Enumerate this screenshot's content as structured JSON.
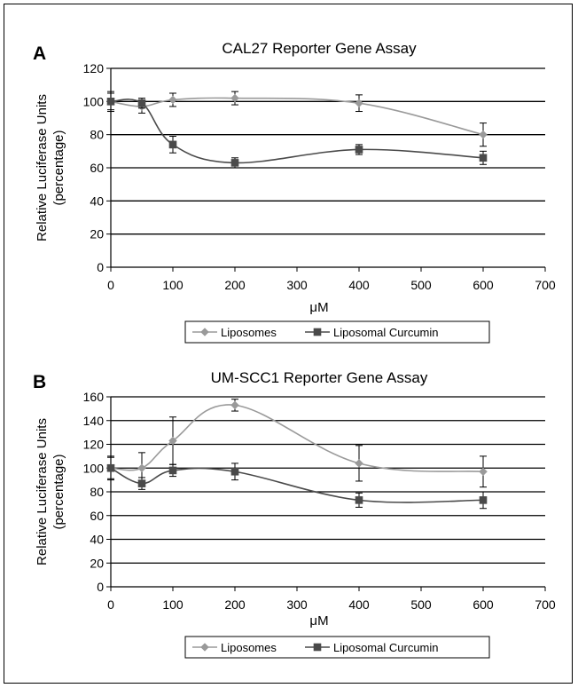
{
  "chart_data": [
    {
      "panel": "A",
      "type": "line",
      "title": "CAL27 Reporter Gene Assay",
      "xlabel": "μM",
      "ylabel": [
        "Relative Luciferase Units",
        "(percentage)"
      ],
      "xlim": [
        0,
        700
      ],
      "ylim": [
        0,
        120
      ],
      "xticks": [
        0,
        100,
        200,
        300,
        400,
        500,
        600,
        700
      ],
      "yticks": [
        0,
        20,
        40,
        60,
        80,
        100,
        120
      ],
      "grid": "horizontal",
      "legend": "bottom",
      "series": [
        {
          "name": "Liposomes",
          "color": "#9a9a9a",
          "marker": "diamond",
          "x": [
            0,
            50,
            100,
            200,
            400,
            600
          ],
          "y": [
            100,
            97,
            101,
            102,
            99,
            80
          ],
          "err": [
            5,
            4,
            4,
            4,
            5,
            7
          ]
        },
        {
          "name": "Liposomal Curcumin",
          "color": "#4a4a4a",
          "marker": "square",
          "x": [
            0,
            50,
            100,
            200,
            400,
            600
          ],
          "y": [
            100,
            99,
            74,
            63,
            71,
            66
          ],
          "err": [
            6,
            3,
            5,
            3,
            3,
            4
          ]
        }
      ]
    },
    {
      "panel": "B",
      "type": "line",
      "title": "UM-SCC1 Reporter Gene Assay",
      "xlabel": "μM",
      "ylabel": [
        "Relative Luciferase Units",
        "(percentage)"
      ],
      "xlim": [
        0,
        700
      ],
      "ylim": [
        0,
        160
      ],
      "xticks": [
        0,
        100,
        200,
        300,
        400,
        500,
        600,
        700
      ],
      "yticks": [
        0,
        20,
        40,
        60,
        80,
        100,
        120,
        140,
        160
      ],
      "grid": "horizontal",
      "legend": "bottom",
      "series": [
        {
          "name": "Liposomes",
          "color": "#9a9a9a",
          "marker": "diamond",
          "x": [
            0,
            50,
            100,
            200,
            400,
            600
          ],
          "y": [
            100,
            100,
            123,
            153,
            104,
            97
          ],
          "err": [
            10,
            13,
            20,
            5,
            15,
            13
          ]
        },
        {
          "name": "Liposomal Curcumin",
          "color": "#4a4a4a",
          "marker": "square",
          "x": [
            0,
            50,
            100,
            200,
            400,
            600
          ],
          "y": [
            100,
            87,
            98,
            97,
            73,
            73
          ],
          "err": [
            9,
            5,
            5,
            7,
            6,
            7
          ]
        }
      ]
    }
  ]
}
